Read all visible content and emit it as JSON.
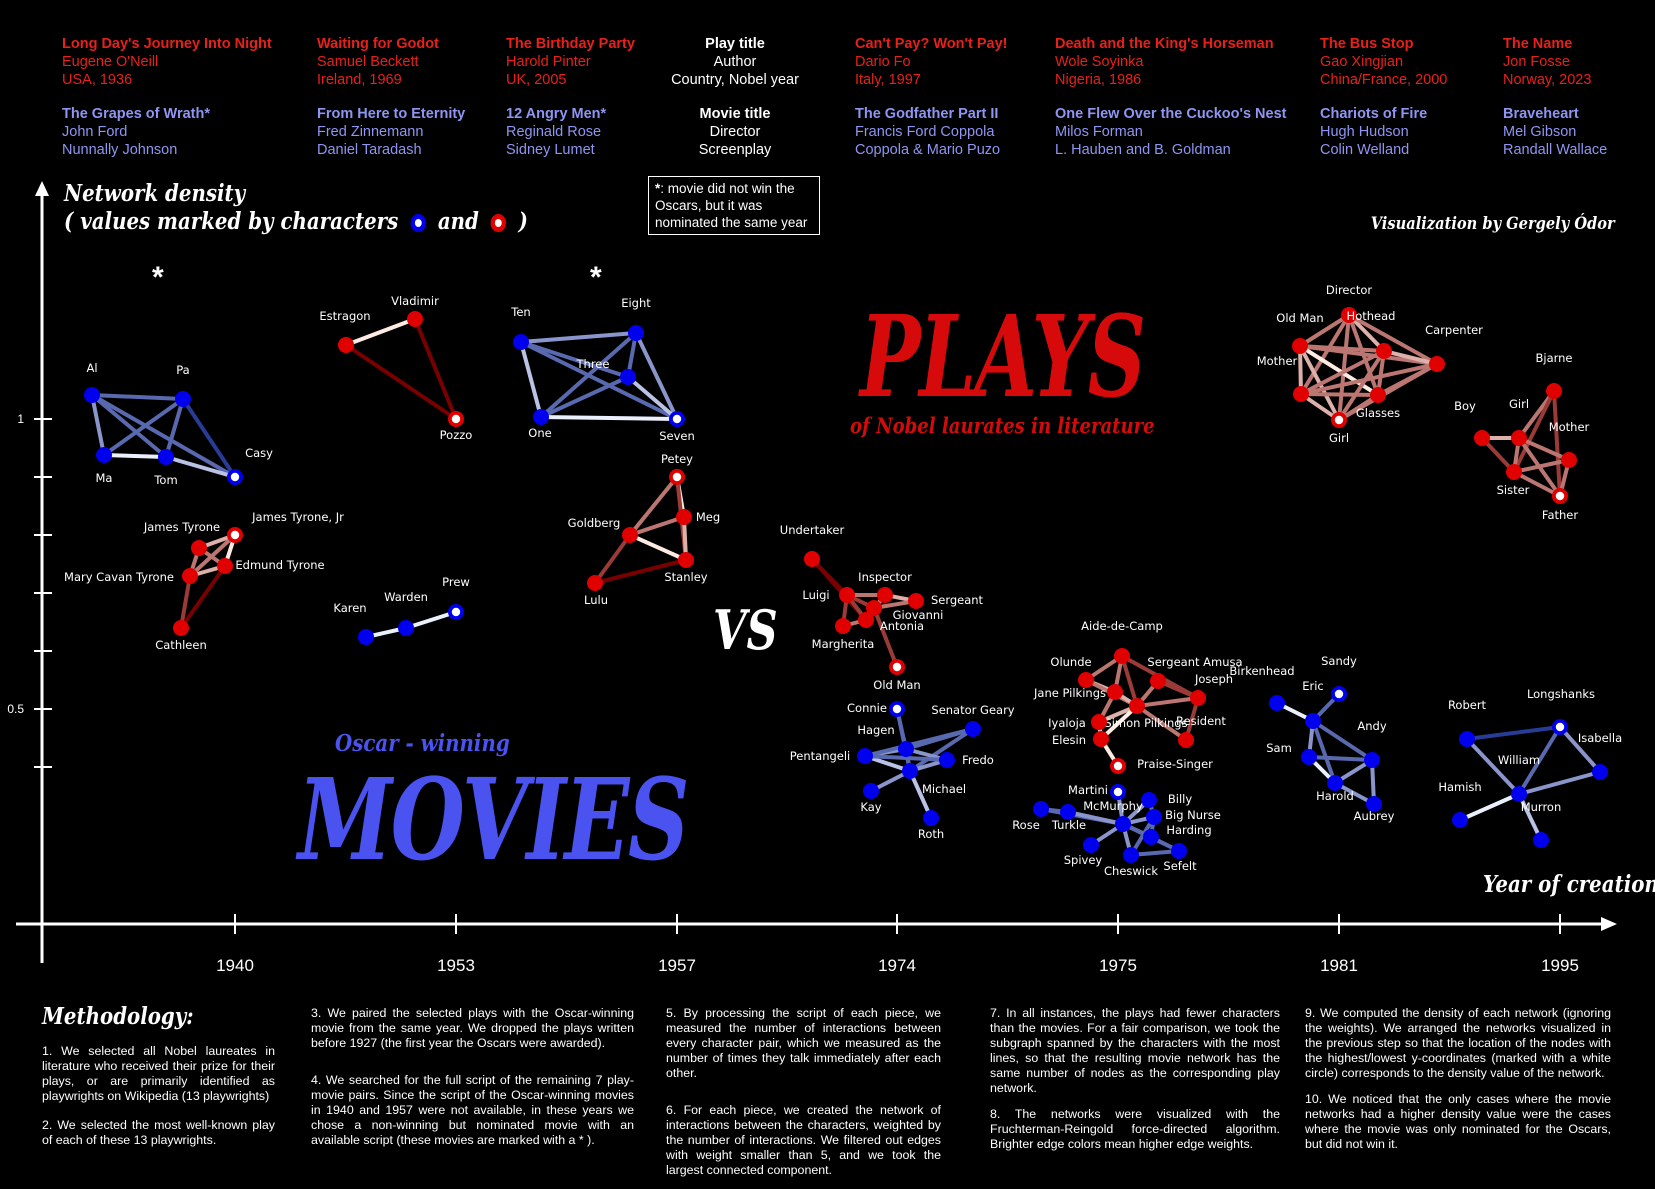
{
  "header": {
    "columns": [
      {
        "play_title": "Long Day's Journey Into Night",
        "play_author": "Eugene O'Neill",
        "play_origin": "USA, 1936",
        "movie_title": "The Grapes of Wrath*",
        "movie_director": "John Ford",
        "movie_screenplay": "Nunnally Johnson"
      },
      {
        "play_title": "Waiting for Godot",
        "play_author": "Samuel Beckett",
        "play_origin": "Ireland, 1969",
        "movie_title": "From Here to Eternity",
        "movie_director": "Fred Zinnemann",
        "movie_screenplay": "Daniel Taradash"
      },
      {
        "play_title": "The Birthday Party",
        "play_author": "Harold Pinter",
        "play_origin": "UK, 2005",
        "movie_title": "12 Angry Men*",
        "movie_director": "Reginald Rose",
        "movie_screenplay": "Sidney Lumet"
      },
      {
        "play_title": "Can't Pay? Won't Pay!",
        "play_author": "Dario Fo",
        "play_origin": "Italy, 1997",
        "movie_title": "The Godfather Part II",
        "movie_director": "Francis Ford Coppola",
        "movie_screenplay": "Coppola & Mario Puzo"
      },
      {
        "play_title": "Death and the King's Horseman",
        "play_author": "Wole Soyinka",
        "play_origin": "Nigeria, 1986",
        "movie_title": "One Flew Over the Cuckoo's Nest",
        "movie_director": "Milos Forman",
        "movie_screenplay": "L. Hauben and B. Goldman"
      },
      {
        "play_title": "The Bus Stop",
        "play_author": "Gao Xingjian",
        "play_origin": "China/France, 2000",
        "movie_title": "Chariots of Fire",
        "movie_director": "Hugh Hudson",
        "movie_screenplay": "Colin Welland"
      },
      {
        "play_title": "The Name",
        "play_author": "Jon Fosse",
        "play_origin": "Norway, 2023",
        "movie_title": "Braveheart",
        "movie_director": "Mel Gibson",
        "movie_screenplay": "Randall Wallace"
      }
    ],
    "legend": {
      "play_title": "Play title",
      "play_author": "Author",
      "play_origin": "Country, Nobel year",
      "movie_title": "Movie title",
      "movie_director": "Director",
      "movie_screenplay": "Screenplay"
    },
    "note_star": "*",
    "note_text": ": movie did not win the Oscars, but it was nominated the same year"
  },
  "titles": {
    "plays": "PLAYS",
    "plays_sub": "of Nobel laurates in literature",
    "movies_sub": "Oscar - winning",
    "movies": "MOVIES",
    "vs": "VS",
    "credit": "Visualization by Gergely Ódor",
    "y_title_1": "Network density",
    "y_title_2_a": "( values marked by characters",
    "y_title_2_b": "and",
    "y_title_2_c": ")",
    "x_title": "Year of creation",
    "nominated_marker": "*"
  },
  "colors": {
    "play": "#e8201c",
    "movie": "#8f96f2",
    "play_node": "#e00000",
    "movie_node": "#0000ee"
  },
  "chart_data": {
    "type": "network",
    "x_ticks": [
      "1940",
      "1953",
      "1957",
      "1974",
      "1975",
      "1981",
      "1995"
    ],
    "y_ticks": [
      {
        "label": "1",
        "value": 1.0
      },
      {
        "label": "",
        "value": 0.9
      },
      {
        "label": "",
        "value": 0.8
      },
      {
        "label": "",
        "value": 0.7
      },
      {
        "label": "",
        "value": 0.6
      },
      {
        "label": "0.5",
        "value": 0.5
      },
      {
        "label": "",
        "value": 0.4
      }
    ],
    "networks": [
      {
        "kind": "movie",
        "year": "1940",
        "nodes": [
          "Al",
          "Pa",
          "Ma",
          "Tom",
          "Casy"
        ],
        "edges": [
          [
            0,
            1,
            2
          ],
          [
            0,
            2,
            3
          ],
          [
            0,
            3,
            2
          ],
          [
            0,
            4,
            2
          ],
          [
            1,
            2,
            2
          ],
          [
            1,
            3,
            2
          ],
          [
            1,
            4,
            1
          ],
          [
            2,
            3,
            5
          ],
          [
            3,
            4,
            4
          ]
        ]
      },
      {
        "kind": "play",
        "year": "1940",
        "nodes": [
          "James Tyrone",
          "James Tyrone, Jr",
          "Mary Cavan Tyrone",
          "Edmund Tyrone",
          "Cathleen"
        ],
        "edges": [
          [
            0,
            1,
            4
          ],
          [
            0,
            2,
            3
          ],
          [
            0,
            3,
            3
          ],
          [
            1,
            2,
            3
          ],
          [
            1,
            3,
            5
          ],
          [
            2,
            3,
            4
          ],
          [
            2,
            4,
            2
          ],
          [
            3,
            4,
            1
          ]
        ]
      },
      {
        "kind": "play",
        "year": "1953",
        "nodes": [
          "Estragon",
          "Vladimir",
          "Pozzo"
        ],
        "edges": [
          [
            0,
            1,
            5
          ],
          [
            0,
            2,
            1
          ],
          [
            1,
            2,
            1
          ]
        ]
      },
      {
        "kind": "movie",
        "year": "1953",
        "nodes": [
          "Karen",
          "Warden",
          "Prew"
        ],
        "edges": [
          [
            0,
            1,
            5
          ],
          [
            1,
            2,
            5
          ]
        ]
      },
      {
        "kind": "movie",
        "year": "1957",
        "nodes": [
          "Ten",
          "Eight",
          "Three",
          "One",
          "Seven"
        ],
        "edges": [
          [
            0,
            1,
            3
          ],
          [
            0,
            2,
            2
          ],
          [
            0,
            3,
            4
          ],
          [
            0,
            4,
            2
          ],
          [
            1,
            2,
            2
          ],
          [
            1,
            3,
            2
          ],
          [
            1,
            4,
            3
          ],
          [
            2,
            3,
            2
          ],
          [
            2,
            4,
            4
          ],
          [
            3,
            4,
            5
          ]
        ]
      },
      {
        "kind": "play",
        "year": "1957",
        "nodes": [
          "Petey",
          "Meg",
          "Goldberg",
          "Stanley",
          "Lulu"
        ],
        "edges": [
          [
            0,
            1,
            5
          ],
          [
            0,
            2,
            3
          ],
          [
            0,
            3,
            2
          ],
          [
            1,
            2,
            3
          ],
          [
            1,
            3,
            4
          ],
          [
            2,
            3,
            5
          ],
          [
            2,
            4,
            2
          ],
          [
            3,
            4,
            1
          ]
        ]
      },
      {
        "kind": "play",
        "year": "1974",
        "nodes": [
          "Undertaker",
          "Luigi",
          "Inspector",
          "Sergeant",
          "Giovanni",
          "Antonia",
          "Margherita",
          "Old Man"
        ],
        "edges": [
          [
            0,
            1,
            1
          ],
          [
            0,
            5,
            1
          ],
          [
            1,
            2,
            3
          ],
          [
            1,
            4,
            2
          ],
          [
            1,
            6,
            2
          ],
          [
            2,
            3,
            4
          ],
          [
            2,
            4,
            3
          ],
          [
            2,
            5,
            3
          ],
          [
            3,
            4,
            3
          ],
          [
            4,
            5,
            4
          ],
          [
            5,
            6,
            3
          ],
          [
            4,
            7,
            2
          ],
          [
            1,
            5,
            2
          ]
        ]
      },
      {
        "kind": "movie",
        "year": "1974",
        "nodes": [
          "Connie",
          "Senator Geary",
          "Hagen",
          "Pentangeli",
          "Fredo",
          "Michael",
          "Kay",
          "Roth"
        ],
        "edges": [
          [
            0,
            2,
            2
          ],
          [
            1,
            2,
            2
          ],
          [
            1,
            5,
            2
          ],
          [
            2,
            3,
            3
          ],
          [
            2,
            4,
            3
          ],
          [
            2,
            5,
            3
          ],
          [
            3,
            5,
            4
          ],
          [
            4,
            5,
            3
          ],
          [
            5,
            6,
            3
          ],
          [
            5,
            7,
            4
          ],
          [
            0,
            5,
            2
          ],
          [
            3,
            4,
            2
          ],
          [
            1,
            3,
            2
          ]
        ]
      },
      {
        "kind": "play",
        "year": "1975",
        "nodes": [
          "Aide-de-Camp",
          "Olunde",
          "Sergeant Amusa",
          "Joseph",
          "Jane Pilkings",
          "Simon Pilkings",
          "Resident",
          "Iyaloja",
          "Elesin",
          "Praise-Singer"
        ],
        "edges": [
          [
            0,
            1,
            3
          ],
          [
            0,
            4,
            3
          ],
          [
            0,
            5,
            2
          ],
          [
            1,
            4,
            4
          ],
          [
            1,
            5,
            3
          ],
          [
            2,
            5,
            3
          ],
          [
            3,
            5,
            3
          ],
          [
            3,
            6,
            2
          ],
          [
            4,
            5,
            4
          ],
          [
            5,
            6,
            3
          ],
          [
            5,
            7,
            4
          ],
          [
            5,
            8,
            5
          ],
          [
            7,
            8,
            4
          ],
          [
            8,
            9,
            5
          ],
          [
            2,
            3,
            2
          ],
          [
            4,
            7,
            3
          ],
          [
            0,
            3,
            2
          ]
        ]
      },
      {
        "kind": "movie",
        "year": "1975",
        "nodes": [
          "Martini",
          "Billy",
          "McMurphy",
          "Big Nurse",
          "Harding",
          "Rose",
          "Turkle",
          "Spivey",
          "Cheswick",
          "Sefelt"
        ],
        "edges": [
          [
            0,
            2,
            3
          ],
          [
            1,
            2,
            3
          ],
          [
            2,
            3,
            3
          ],
          [
            2,
            4,
            3
          ],
          [
            2,
            5,
            2
          ],
          [
            2,
            6,
            3
          ],
          [
            2,
            7,
            3
          ],
          [
            2,
            8,
            3
          ],
          [
            2,
            9,
            2
          ],
          [
            5,
            6,
            2
          ],
          [
            3,
            4,
            2
          ],
          [
            4,
            9,
            2
          ],
          [
            8,
            9,
            2
          ],
          [
            1,
            3,
            2
          ],
          [
            3,
            8,
            2
          ]
        ]
      },
      {
        "kind": "play",
        "year": "1981",
        "nodes": [
          "Director",
          "Old Man",
          "Hothead",
          "Carpenter",
          "Mother",
          "Glasses",
          "Girl"
        ],
        "edges": [
          [
            0,
            1,
            3
          ],
          [
            0,
            2,
            4
          ],
          [
            0,
            3,
            3
          ],
          [
            0,
            4,
            3
          ],
          [
            0,
            5,
            3
          ],
          [
            0,
            6,
            3
          ],
          [
            1,
            2,
            3
          ],
          [
            1,
            3,
            3
          ],
          [
            1,
            4,
            4
          ],
          [
            1,
            5,
            5
          ],
          [
            1,
            6,
            4
          ],
          [
            2,
            3,
            4
          ],
          [
            2,
            4,
            3
          ],
          [
            2,
            5,
            3
          ],
          [
            2,
            6,
            3
          ],
          [
            3,
            4,
            3
          ],
          [
            3,
            5,
            3
          ],
          [
            3,
            6,
            3
          ],
          [
            4,
            5,
            3
          ],
          [
            4,
            6,
            4
          ],
          [
            5,
            6,
            3
          ]
        ]
      },
      {
        "kind": "movie",
        "year": "1981",
        "nodes": [
          "Sandy",
          "Birkenhead",
          "Eric",
          "Sam",
          "Andy",
          "Harold",
          "Aubrey"
        ],
        "edges": [
          [
            0,
            2,
            2
          ],
          [
            1,
            2,
            5
          ],
          [
            2,
            3,
            3
          ],
          [
            2,
            4,
            2
          ],
          [
            2,
            5,
            2
          ],
          [
            3,
            5,
            5
          ],
          [
            4,
            5,
            3
          ],
          [
            4,
            6,
            3
          ],
          [
            5,
            6,
            3
          ],
          [
            3,
            4,
            2
          ]
        ]
      },
      {
        "kind": "play",
        "year": "1995",
        "nodes": [
          "Bjarne",
          "Boy",
          "Girl",
          "Mother",
          "Sister",
          "Father"
        ],
        "edges": [
          [
            0,
            2,
            3
          ],
          [
            0,
            4,
            2
          ],
          [
            0,
            5,
            2
          ],
          [
            1,
            2,
            4
          ],
          [
            1,
            4,
            2
          ],
          [
            2,
            3,
            3
          ],
          [
            2,
            4,
            3
          ],
          [
            2,
            5,
            3
          ],
          [
            3,
            4,
            3
          ],
          [
            3,
            5,
            3
          ],
          [
            4,
            5,
            3
          ]
        ]
      },
      {
        "kind": "movie",
        "year": "1995",
        "nodes": [
          "Robert",
          "Longshanks",
          "Isabella",
          "William",
          "Hamish",
          "Murron"
        ],
        "edges": [
          [
            0,
            1,
            1
          ],
          [
            0,
            3,
            3
          ],
          [
            1,
            2,
            3
          ],
          [
            1,
            3,
            2
          ],
          [
            3,
            2,
            3
          ],
          [
            3,
            4,
            5
          ],
          [
            3,
            5,
            4
          ]
        ]
      }
    ]
  },
  "methodology": {
    "title": "Methodology:",
    "p1": "1. We selected all Nobel laureates in literature who received their prize for their plays, or are primarily identified as playwrights on Wikipedia (13 playwrights)",
    "p2": "2. We selected the most well-known play of each of these 13 playwrights.",
    "p3": "3. We paired the selected plays with the Oscar-winning movie from the same year. We dropped the plays written before 1927 (the first year the Oscars were awarded).",
    "p4": "4. We searched for the full script of the remaining 7 play-movie pairs. Since the script of the Oscar-winning movies in 1940 and 1957 were not available, in these years we chose a non-winning but nominated movie with an available script (these movies are marked with a * ).",
    "p5": "5. By processing the script of each piece, we measured the number of interactions between every character pair, which we measured as the number of times they talk immediately after each other.",
    "p6": "6. For each piece, we created the network of interactions between the characters, weighted by the number of interactions. We filtered out edges with weight smaller than 5, and we took the largest connected component.",
    "p7": "7. In all instances, the plays had fewer characters than the movies. For a fair comparison, we took the subgraph spanned by the characters with the most lines, so that the resulting movie network has the same number of nodes as the corresponding play network.",
    "p8": "8. The networks were visualized with the Fruchterman-Reingold force-directed algorithm. Brighter edge colors mean higher edge weights.",
    "p9": "9. We computed the density of each network (ignoring the weights). We arranged the networks visualized in the previous step so that the location of the nodes with the highest/lowest y-coordinates (marked with a white circle) corresponds to the density value of the network.",
    "p10": "10. We noticed that the only cases where the movie networks had a higher density value were the cases where the movie was only nominated for the Oscars, but did not win it."
  }
}
